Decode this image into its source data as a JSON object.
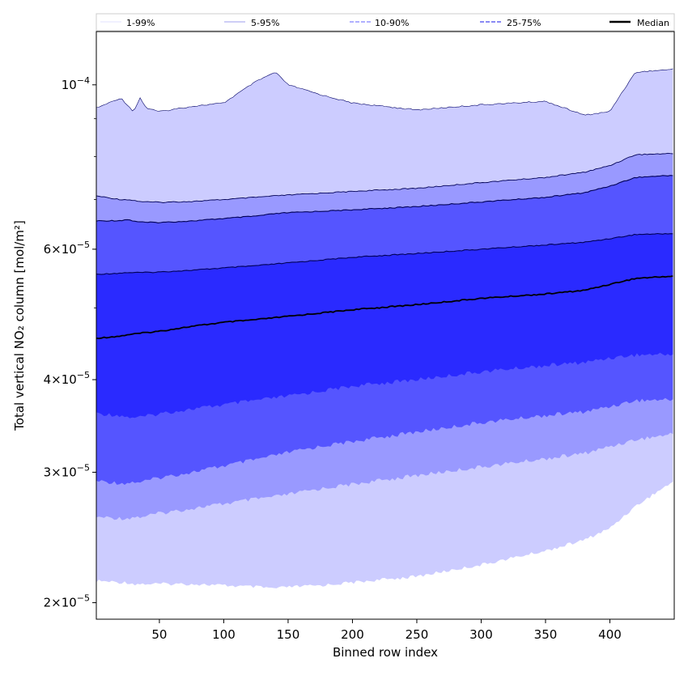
{
  "chart_data": {
    "type": "area",
    "title": "",
    "xlabel": "Binned row index",
    "ylabel": "Total vertical NO₂ column [mol/m²]",
    "xlim": [
      1,
      450
    ],
    "ylim": [
      1.9e-05,
      0.000118
    ],
    "yscale": "log",
    "x_ticks": [
      50,
      100,
      150,
      200,
      250,
      300,
      350,
      400
    ],
    "y_ticks": [
      {
        "value": 0.0001,
        "base": "10",
        "exp": "−4",
        "mantissa": ""
      },
      {
        "value": 6e-05,
        "base": "10",
        "exp": "−5",
        "mantissa": "6×"
      },
      {
        "value": 4e-05,
        "base": "10",
        "exp": "−5",
        "mantissa": "4×"
      },
      {
        "value": 3e-05,
        "base": "10",
        "exp": "−5",
        "mantissa": "3×"
      },
      {
        "value": 2e-05,
        "base": "10",
        "exp": "−5",
        "mantissa": "2×"
      }
    ],
    "y_minor_ticks": [
      2e-05,
      3e-05,
      4e-05,
      5e-05,
      6e-05,
      7e-05,
      8e-05,
      9e-05
    ],
    "x_profile": [
      1,
      20,
      25,
      30,
      35,
      40,
      50,
      75,
      100,
      125,
      140,
      150,
      175,
      200,
      250,
      300,
      350,
      380,
      400,
      420,
      450
    ],
    "median": [
      4.55e-05,
      4.58e-05,
      4.6e-05,
      4.61e-05,
      4.62e-05,
      4.63e-05,
      4.65e-05,
      4.72e-05,
      4.78e-05,
      4.82e-05,
      4.85e-05,
      4.87e-05,
      4.92e-05,
      4.97e-05,
      5.05e-05,
      5.15e-05,
      5.22e-05,
      5.28e-05,
      5.38e-05,
      5.48e-05,
      5.52e-05
    ],
    "bands": [
      {
        "name": "1-99%",
        "fill": "#ccccff",
        "lower": [
          2.14e-05,
          2.13e-05,
          2.13e-05,
          2.12e-05,
          2.12e-05,
          2.12e-05,
          2.12e-05,
          2.12e-05,
          2.11e-05,
          2.1e-05,
          2.09e-05,
          2.1e-05,
          2.11e-05,
          2.13e-05,
          2.17e-05,
          2.25e-05,
          2.35e-05,
          2.43e-05,
          2.52e-05,
          2.7e-05,
          2.92e-05
        ],
        "upper": [
          9.3e-05,
          9.6e-05,
          9.4e-05,
          9.2e-05,
          9.6e-05,
          9.3e-05,
          9.2e-05,
          9.35e-05,
          9.45e-05,
          0.000101,
          0.000104,
          0.0001,
          9.7e-05,
          9.45e-05,
          9.25e-05,
          9.4e-05,
          9.5e-05,
          9.1e-05,
          9.2e-05,
          0.000104,
          0.000105
        ]
      },
      {
        "name": "5-95%",
        "fill": "#9999ff",
        "lower": [
          2.61e-05,
          2.6e-05,
          2.6e-05,
          2.61e-05,
          2.61e-05,
          2.62e-05,
          2.64e-05,
          2.68e-05,
          2.72e-05,
          2.76e-05,
          2.78e-05,
          2.8e-05,
          2.85e-05,
          2.89e-05,
          2.97e-05,
          3.05e-05,
          3.13e-05,
          3.18e-05,
          3.25e-05,
          3.32e-05,
          3.38e-05
        ]
      },
      {
        "name": "10-90%",
        "fill": "#5555ff",
        "lower": [
          2.92e-05,
          2.9e-05,
          2.9e-05,
          2.91e-05,
          2.91e-05,
          2.92e-05,
          2.95e-05,
          3e-05,
          3.06e-05,
          3.12e-05,
          3.16e-05,
          3.19e-05,
          3.25e-05,
          3.3e-05,
          3.4e-05,
          3.5e-05,
          3.58e-05,
          3.62e-05,
          3.68e-05,
          3.75e-05,
          3.76e-05
        ],
        "upper": [
          6.55e-05,
          6.56e-05,
          6.58e-05,
          6.55e-05,
          6.53e-05,
          6.52e-05,
          6.52e-05,
          6.55e-05,
          6.6e-05,
          6.65e-05,
          6.7e-05,
          6.72e-05,
          6.75e-05,
          6.78e-05,
          6.85e-05,
          6.95e-05,
          7.05e-05,
          7.15e-05,
          7.3e-05,
          7.5e-05,
          7.55e-05
        ]
      },
      {
        "name": "25-75%",
        "fill": "#2a2aff",
        "lower": [
          3.6e-05,
          3.58e-05,
          3.56e-05,
          3.56e-05,
          3.56e-05,
          3.57e-05,
          3.6e-05,
          3.65e-05,
          3.7e-05,
          3.75e-05,
          3.78e-05,
          3.8e-05,
          3.86e-05,
          3.92e-05,
          4e-05,
          4.1e-05,
          4.18e-05,
          4.22e-05,
          4.28e-05,
          4.32e-05,
          4.33e-05
        ],
        "upper": [
          5.55e-05,
          5.57e-05,
          5.58e-05,
          5.58e-05,
          5.58e-05,
          5.58e-05,
          5.59e-05,
          5.62e-05,
          5.66e-05,
          5.7e-05,
          5.73e-05,
          5.75e-05,
          5.8e-05,
          5.85e-05,
          5.92e-05,
          6e-05,
          6.08e-05,
          6.13e-05,
          6.2e-05,
          6.28e-05,
          6.3e-05
        ]
      }
    ],
    "upper_95": [
      7.08e-05,
      7e-05,
      7e-05,
      6.98e-05,
      6.96e-05,
      6.95e-05,
      6.94e-05,
      6.96e-05,
      7e-05,
      7.05e-05,
      7.08e-05,
      7.1e-05,
      7.14e-05,
      7.18e-05,
      7.25e-05,
      7.38e-05,
      7.5e-05,
      7.62e-05,
      7.78e-05,
      8.05e-05,
      8.08e-05
    ],
    "legend": {
      "position": "top",
      "entries": [
        {
          "label": "1-99%",
          "color": "#e6e6ff",
          "style": "solid"
        },
        {
          "label": "5-95%",
          "color": "#b0b0f0",
          "style": "solid"
        },
        {
          "label": "10-90%",
          "color": "#8080ff",
          "style": "dashed"
        },
        {
          "label": "25-75%",
          "color": "#4444ee",
          "style": "dashed"
        },
        {
          "label": "Median",
          "color": "#000000",
          "style": "solid"
        }
      ]
    }
  }
}
